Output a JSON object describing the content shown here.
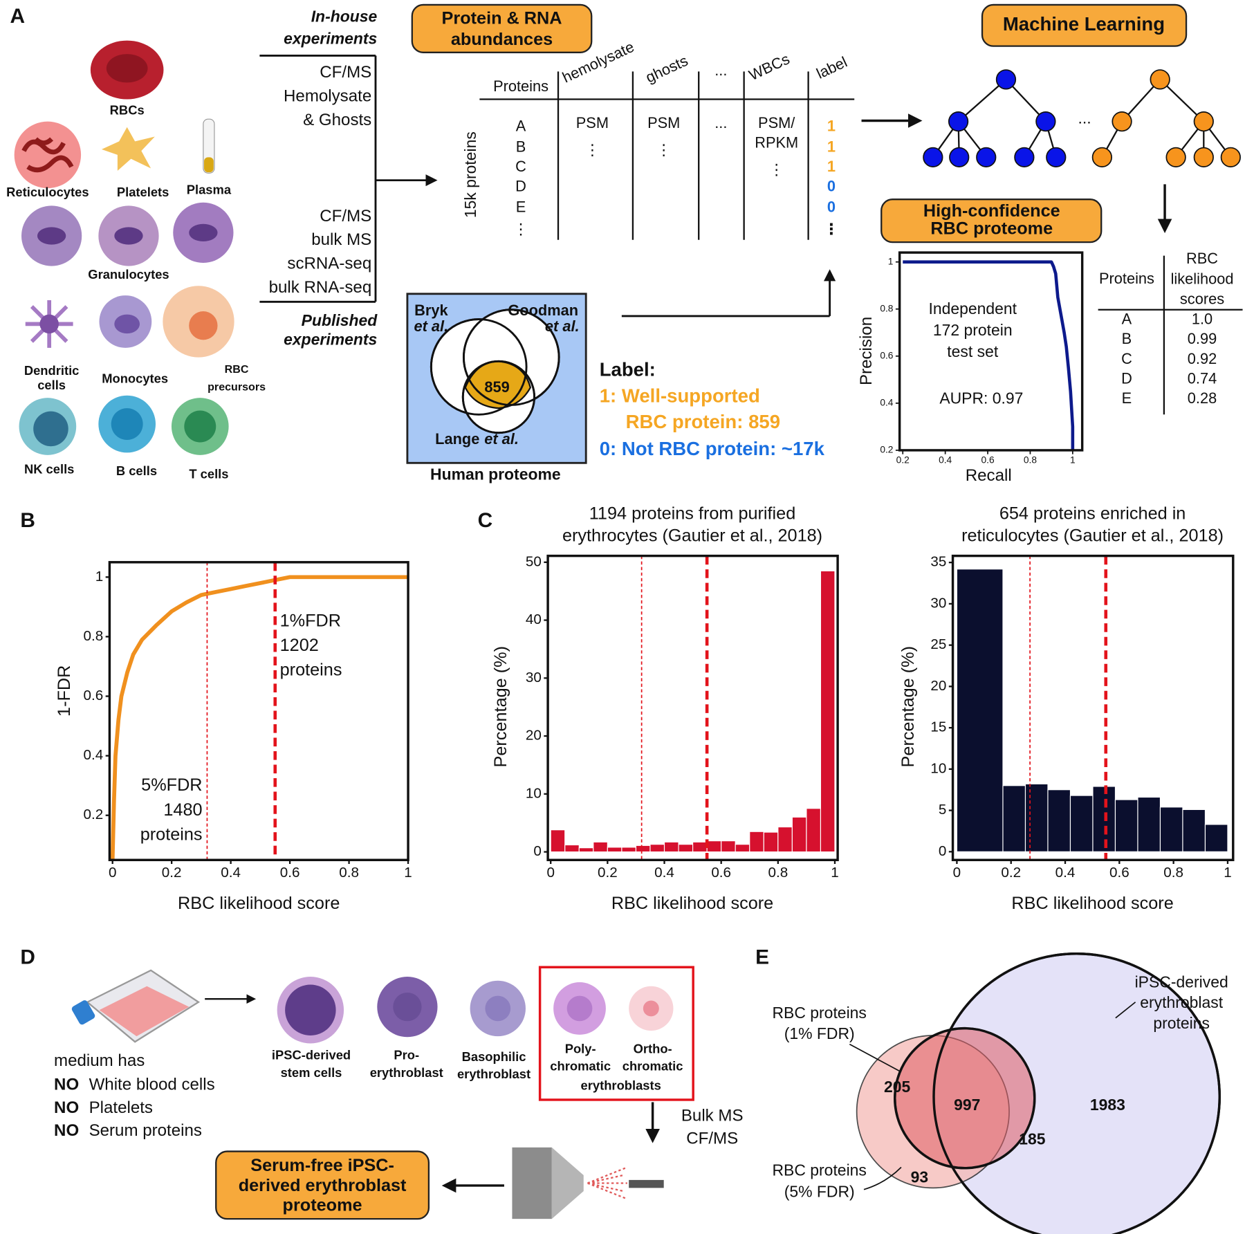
{
  "panel_labels": [
    "A",
    "B",
    "C",
    "D",
    "E"
  ],
  "panel_a": {
    "cells": [
      [
        "RBCs"
      ],
      [
        "Reticulocytes"
      ],
      [
        "Platelets"
      ],
      [
        "Plasma"
      ],
      [
        "Granulocytes"
      ],
      [
        "Dendritic",
        "cells"
      ],
      [
        "Monocytes"
      ],
      [
        "RBC",
        "precursors"
      ],
      [
        "NK cells"
      ],
      [
        "B cells"
      ],
      [
        "T cells"
      ]
    ],
    "in_house": [
      "In-house",
      "experiments"
    ],
    "in_house_items": [
      "CF/MS",
      "Hemolysate",
      "& Ghosts"
    ],
    "published_items": [
      "CF/MS",
      "bulk MS",
      "scRNA-seq",
      "bulk RNA-seq"
    ],
    "published": [
      "Published",
      "experiments"
    ],
    "abundance_title": [
      "Protein & RNA",
      "abundances"
    ],
    "table": {
      "row_axis": "15k proteins",
      "columns": [
        "Proteins",
        "hemolysate",
        "ghosts",
        "...",
        "WBCs",
        "label"
      ],
      "rows": [
        "A",
        "B",
        "C",
        "D",
        "E",
        "⋮"
      ],
      "hemolysate": [
        "PSM",
        "⋮"
      ],
      "ghosts": [
        "PSM",
        "⋮"
      ],
      "dots": [
        "..."
      ],
      "wbcs": [
        "PSM/",
        "RPKM",
        "⋮"
      ],
      "labels": [
        "1",
        "1",
        "1",
        "0",
        "0",
        "⋮"
      ]
    },
    "venn": {
      "bryk": [
        "Bryk",
        "et al."
      ],
      "goodman": [
        "Goodman",
        "et al."
      ],
      "lange": [
        "Lange",
        "et al."
      ],
      "overlap": 859,
      "caption": "Human proteome"
    },
    "label_key": {
      "title": "Label:",
      "positive": [
        "1: Well-supported",
        "RBC protein: 859"
      ],
      "negative": "0: Not RBC protein: ~17k"
    },
    "ml_title": "Machine Learning",
    "tree_dots": "...",
    "scores_table": {
      "columns": [
        "Proteins",
        [
          "RBC",
          "likelihood",
          "scores"
        ]
      ],
      "rows": [
        "A",
        "B",
        "C",
        "D",
        "E"
      ],
      "scores": [
        "1.0",
        "0.99",
        "0.92",
        "0.74",
        "0.28"
      ]
    }
  },
  "chart_data": [
    {
      "type": "line",
      "title": [
        "High-confidence",
        "RBC proteome"
      ],
      "x_label": "Recall",
      "y_label": "Precision",
      "annotations": [
        [
          "Independent",
          "172 protein",
          "test set"
        ],
        [
          "AUPR: 0.97"
        ]
      ],
      "x": [
        0.2,
        0.9,
        0.91,
        0.92,
        0.925,
        0.93,
        0.94,
        0.95,
        0.96,
        0.97,
        0.98,
        0.99,
        1.0,
        1.0
      ],
      "values": [
        1,
        1,
        0.98,
        0.95,
        0.9,
        0.85,
        0.8,
        0.75,
        0.7,
        0.64,
        0.55,
        0.45,
        0.3,
        0.2
      ],
      "color": "#0d1a8c",
      "xlim": [
        0.185,
        1.045
      ],
      "ylim": [
        0.2,
        1.04
      ],
      "xticks": [
        0.2,
        0.4,
        0.6,
        0.8,
        1
      ],
      "yticks": [
        0.2,
        0.4,
        0.6,
        0.8,
        1
      ]
    },
    {
      "type": "line",
      "x_label": "RBC likelihood score",
      "y_label": "1-FDR",
      "x": [
        0,
        0.005,
        0.01,
        0.02,
        0.03,
        0.05,
        0.07,
        0.1,
        0.15,
        0.2,
        0.25,
        0.3,
        0.35,
        0.4,
        0.45,
        0.5,
        0.55,
        0.6,
        0.7,
        0.8,
        1
      ],
      "values": [
        0.05,
        0.25,
        0.4,
        0.52,
        0.6,
        0.68,
        0.74,
        0.79,
        0.84,
        0.885,
        0.915,
        0.94,
        0.95,
        0.96,
        0.97,
        0.98,
        0.99,
        1,
        1,
        1,
        1
      ],
      "color": "#f0901e",
      "xlim": [
        -0.01,
        1
      ],
      "ylim": [
        0.05,
        1.05
      ],
      "xticks": [
        0,
        0.2,
        0.4,
        0.6,
        0.8,
        1
      ],
      "yticks": [
        0.2,
        0.4,
        0.6,
        0.8,
        1
      ],
      "thresholds": [
        0.32,
        0.55
      ],
      "threshold_color": "#e3131b",
      "annotations": [
        [
          "5%FDR",
          "1480",
          "proteins"
        ],
        [
          "1%FDR",
          "1202",
          "proteins"
        ]
      ]
    },
    {
      "type": "histogram",
      "title": [
        "1194 proteins from purified",
        "erythrocytes (Gautier et al., 2018)"
      ],
      "x_label": "RBC likelihood score",
      "y_label": "Percentage (%)",
      "bins": [
        0,
        0.05,
        0.1,
        0.15,
        0.2,
        0.25,
        0.3,
        0.35,
        0.4,
        0.45,
        0.5,
        0.55,
        0.6,
        0.65,
        0.7,
        0.75,
        0.8,
        0.85,
        0.9,
        0.95,
        1
      ],
      "values": [
        3.8,
        1.2,
        0.7,
        1.7,
        0.8,
        0.8,
        1.1,
        1.3,
        1.7,
        1.3,
        1.7,
        1.9,
        1.9,
        1.3,
        3.5,
        3.4,
        4.3,
        6.0,
        7.5,
        48.5
      ],
      "color": "#d6112e",
      "xlim": [
        -0.01,
        1.01
      ],
      "ylim": [
        -1.4,
        51.1
      ],
      "xticks": [
        0,
        0.2,
        0.4,
        0.6,
        0.8,
        1
      ],
      "yticks": [
        0,
        10,
        20,
        30,
        40,
        50
      ],
      "thresholds": [
        0.32,
        0.55
      ],
      "threshold_color": "#e3131b"
    },
    {
      "type": "histogram",
      "title": [
        "654 proteins enriched in",
        "reticulocytes (Gautier et al., 2018)"
      ],
      "x_label": "RBC likelihood score",
      "y_label": "Percentage (%)",
      "bins": [
        0,
        0.17,
        0.253,
        0.336,
        0.419,
        0.502,
        0.585,
        0.668,
        0.751,
        0.834,
        0.917,
        1
      ],
      "values": [
        34.2,
        8.0,
        8.2,
        7.5,
        6.8,
        7.9,
        6.3,
        6.6,
        5.4,
        5.1,
        3.3
      ],
      "color": "#0b0f2e",
      "xlim": [
        -0.015,
        1.02
      ],
      "ylim": [
        -1,
        35.8
      ],
      "xticks": [
        0,
        0.2,
        0.4,
        0.6,
        0.8,
        1
      ],
      "yticks": [
        0,
        5,
        10,
        15,
        20,
        25,
        30,
        35
      ],
      "thresholds": [
        0.27,
        0.55
      ],
      "threshold_color": "#e3131b"
    }
  ],
  "panel_d": {
    "medium": "medium has",
    "no_word": "NO",
    "no_items": [
      "White blood cells",
      "Platelets",
      "Serum proteins"
    ],
    "stages": [
      [
        "iPSC-derived",
        "stem cells"
      ],
      [
        "Pro-",
        "erythroblast"
      ],
      [
        "Basophilic",
        "erythroblast"
      ],
      [
        "Poly-",
        "chromatic"
      ],
      [
        "Ortho-",
        "chromatic"
      ]
    ],
    "boxed_caption": "erythroblasts",
    "method": [
      "Bulk MS",
      "CF/MS"
    ],
    "result": [
      "Serum-free iPSC-",
      "derived erythroblast",
      "proteome"
    ]
  },
  "panel_e": {
    "rbc1": [
      "RBC proteins",
      "(1% FDR)"
    ],
    "rbc5": [
      "RBC proteins",
      "(5% FDR)"
    ],
    "ipsc": [
      "iPSC-derived",
      "erythroblast",
      "proteins"
    ],
    "counts": {
      "rbc1_only": 205,
      "all": 997,
      "rbc5_ipsc": 185,
      "rbc5_only": 93,
      "ipsc_only": 1983
    }
  }
}
